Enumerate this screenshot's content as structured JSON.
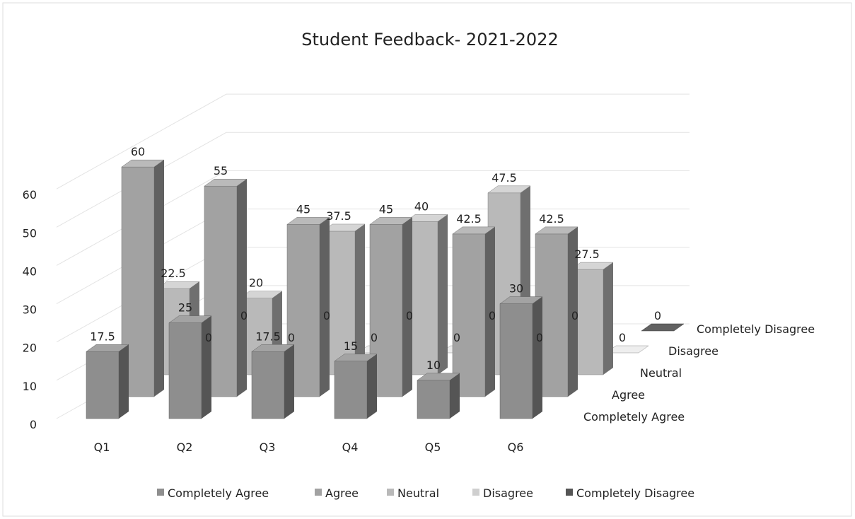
{
  "chart_data": {
    "type": "bar3d",
    "title": "Student Feedback- 2021-2022",
    "categories": [
      "Q1",
      "Q2",
      "Q3",
      "Q4",
      "Q5",
      "Q6"
    ],
    "series": [
      {
        "name": "Completely Agree",
        "color": "#8e8e8e",
        "values": [
          17.5,
          25,
          17.5,
          15,
          10,
          30
        ]
      },
      {
        "name": "Agree",
        "color": "#a2a2a2",
        "values": [
          60,
          55,
          45,
          45,
          42.5,
          42.5
        ]
      },
      {
        "name": "Neutral",
        "color": "#b9b9b9",
        "values": [
          22.5,
          20,
          37.5,
          40,
          47.5,
          27.5
        ]
      },
      {
        "name": "Disagree",
        "color": "#cfcfcf",
        "values": [
          0,
          0,
          0,
          0,
          0,
          0
        ]
      },
      {
        "name": "Completely Disagree",
        "color": "#555555",
        "values": [
          0,
          0,
          0,
          0,
          0,
          0
        ]
      }
    ],
    "ylim": [
      0,
      70
    ],
    "yticks": [
      0,
      10,
      20,
      30,
      40,
      50,
      60
    ],
    "grid": true,
    "legend": "bottom"
  }
}
